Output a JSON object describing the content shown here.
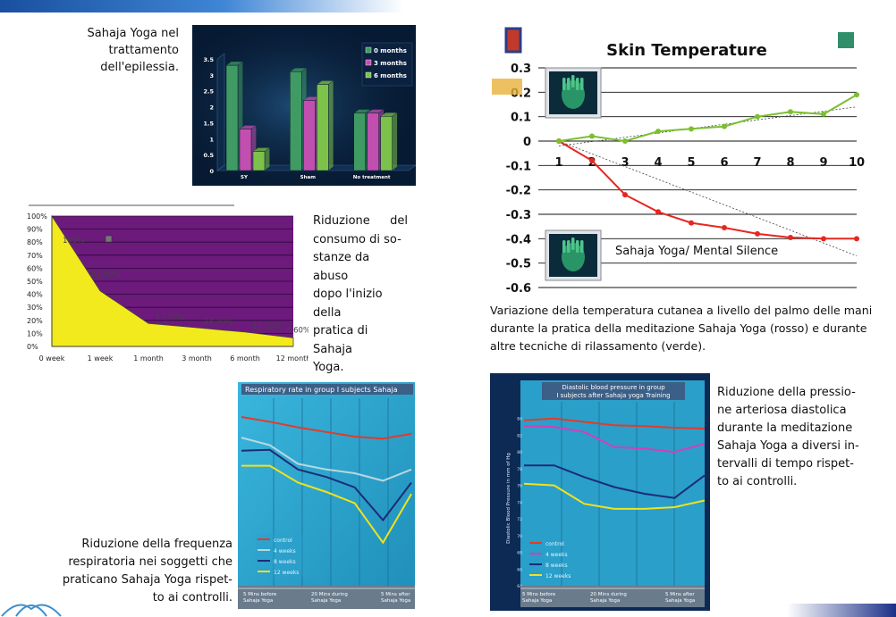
{
  "captions": {
    "epilepsy": [
      "Sahaja Yoga nel",
      "trattamento",
      "dell'epilessia."
    ],
    "substance": [
      "Riduzione del",
      "consumo di so-",
      "stanze da abuso",
      "dopo l'inizio della",
      "pratica di Sahaja",
      "Yoga."
    ],
    "skin": [
      "Variazione della temperatura cutanea a livello del palmo delle mani",
      "durante la pratica della meditazione Sahaja Yoga (rosso) e durante",
      "altre tecniche di rilassamento (verde)."
    ],
    "respiratory": [
      "Riduzione della frequenza",
      "respiratoria nei soggetti che",
      "praticano Sahaja Yoga rispet-",
      "to ai controlli."
    ],
    "diastolic": [
      "Riduzione della pressio-",
      "ne arteriosa diastolica",
      "durante la meditazione",
      "Sahaja Yoga a diversi in-",
      "tervalli di tempo rispet-",
      "to ai controlli."
    ]
  },
  "chart_data": [
    {
      "id": "epilepsy",
      "type": "bar",
      "categories": [
        "SY",
        "Sham",
        "No treatment"
      ],
      "series": [
        {
          "name": "0 months",
          "values": [
            3.3,
            3.1,
            1.8
          ],
          "color": "#3f9b63"
        },
        {
          "name": "3 months",
          "values": [
            1.3,
            2.2,
            1.8
          ],
          "color": "#c14fb0"
        },
        {
          "name": "6 months",
          "values": [
            0.6,
            2.7,
            1.7
          ],
          "color": "#7cc24a"
        }
      ],
      "yticks": [
        "0",
        "0.5",
        "1",
        "1.5",
        "2",
        "2.5",
        "3",
        "3.5"
      ],
      "ylim": [
        0,
        3.5
      ],
      "legend": "top-right",
      "background": "#0b2340"
    },
    {
      "id": "substance",
      "type": "area",
      "categories": [
        "0 week",
        "1 week",
        "1 month",
        "3 month",
        "6 month",
        "12 month"
      ],
      "values": [
        100,
        42.6,
        17.7,
        14.4,
        11.0,
        6.6
      ],
      "data_labels": [
        "100%",
        "42,60%",
        "17,70%",
        "14,40%",
        "11,00%",
        "6,60%"
      ],
      "yticks": [
        "0%",
        "10%",
        "20%",
        "30%",
        "40%",
        "50%",
        "60%",
        "70%",
        "80%",
        "90%",
        "100%"
      ],
      "ylim": [
        0,
        100
      ],
      "fill": "#f2ea1c",
      "background": "#6c1a7c"
    },
    {
      "id": "skin",
      "type": "line",
      "title": "Skin Temperature",
      "x": [
        1,
        2,
        3,
        4,
        5,
        6,
        7,
        8,
        9,
        10
      ],
      "xtick_labels": [
        "1",
        "2",
        "3",
        "4",
        "5",
        "6",
        "7",
        "8",
        "9",
        "10"
      ],
      "series": [
        {
          "values": [
            0,
            -0.08,
            -0.22,
            -0.29,
            -0.335,
            -0.355,
            -0.38,
            -0.395,
            -0.4,
            -0.4
          ],
          "color": "#e8261f"
        },
        {
          "values": [
            0,
            0.02,
            0.0,
            0.04,
            0.05,
            0.06,
            0.1,
            0.12,
            0.11,
            0.19
          ],
          "color": "#7bbf2f"
        }
      ],
      "yticks": [
        "0.3",
        "0.2",
        "0.1",
        "0",
        "-0.1",
        "-0.2",
        "-0.3",
        "-0.4",
        "-0.5",
        "-0.6"
      ],
      "ylim": [
        -0.6,
        0.3
      ],
      "annotation": "Sahaja Yoga/ Mental Silence"
    },
    {
      "id": "respiratory",
      "type": "line",
      "title": "Respiratory rate in group I subjects Sahaja",
      "x": [
        1,
        2,
        3,
        4,
        5,
        6,
        7
      ],
      "series": [
        {
          "name": "control",
          "values": [
            18.0,
            17.5,
            16.9,
            16.4,
            15.9,
            15.7,
            16.2
          ],
          "color": "#e23b2a"
        },
        {
          "name": "4 weeks",
          "values": [
            15.8,
            15.0,
            13.0,
            12.4,
            12.0,
            11.2,
            12.4
          ],
          "color": "#b9d7df"
        },
        {
          "name": "8 weeks",
          "values": [
            14.4,
            14.5,
            12.4,
            11.6,
            10.5,
            7.0,
            11.0
          ],
          "color": "#1c2c78"
        },
        {
          "name": "12 weeks",
          "values": [
            12.8,
            12.8,
            11.0,
            10.0,
            8.8,
            4.6,
            9.8
          ],
          "color": "#f2e21a"
        }
      ],
      "x_labels": [
        "5 Mins before Sahaja Yoga",
        "20 Mins during Sahaja Yoga",
        "5 Mins after Sahaja Yoga"
      ],
      "ylim": [
        0,
        20
      ]
    },
    {
      "id": "diastolic",
      "type": "line",
      "title": "Diastolic blood pressure in group I subjects after Sahaja yoga Training",
      "ylabel": "Diastolic Blood Pressure in mm of Hg",
      "x": [
        1,
        2,
        3,
        4,
        5,
        6,
        7
      ],
      "series": [
        {
          "name": "control",
          "values": [
            83.8,
            84.0,
            83.6,
            83.2,
            83.1,
            82.9,
            82.8
          ],
          "color": "#e23b2a"
        },
        {
          "name": "4 weeks",
          "values": [
            83.1,
            83.0,
            82.4,
            80.6,
            80.4,
            80.0,
            81.0
          ],
          "color": "#d33fb8"
        },
        {
          "name": "8 weeks",
          "values": [
            78.4,
            78.4,
            77.0,
            75.8,
            75.0,
            74.5,
            77.2
          ],
          "color": "#1c2c78"
        },
        {
          "name": "12 weeks",
          "values": [
            76.2,
            76.0,
            73.8,
            73.2,
            73.2,
            73.4,
            74.2
          ],
          "color": "#f2e21a"
        }
      ],
      "yticks": [
        "64",
        "66",
        "68",
        "70",
        "72",
        "74",
        "76",
        "78",
        "80",
        "82",
        "84"
      ],
      "ylim": [
        64,
        86
      ],
      "x_labels": [
        "5 Mins before Sahaja Yoga",
        "20 Mins during Sahaja Yoga",
        "5 Mins after Sahaja Yoga"
      ]
    }
  ]
}
